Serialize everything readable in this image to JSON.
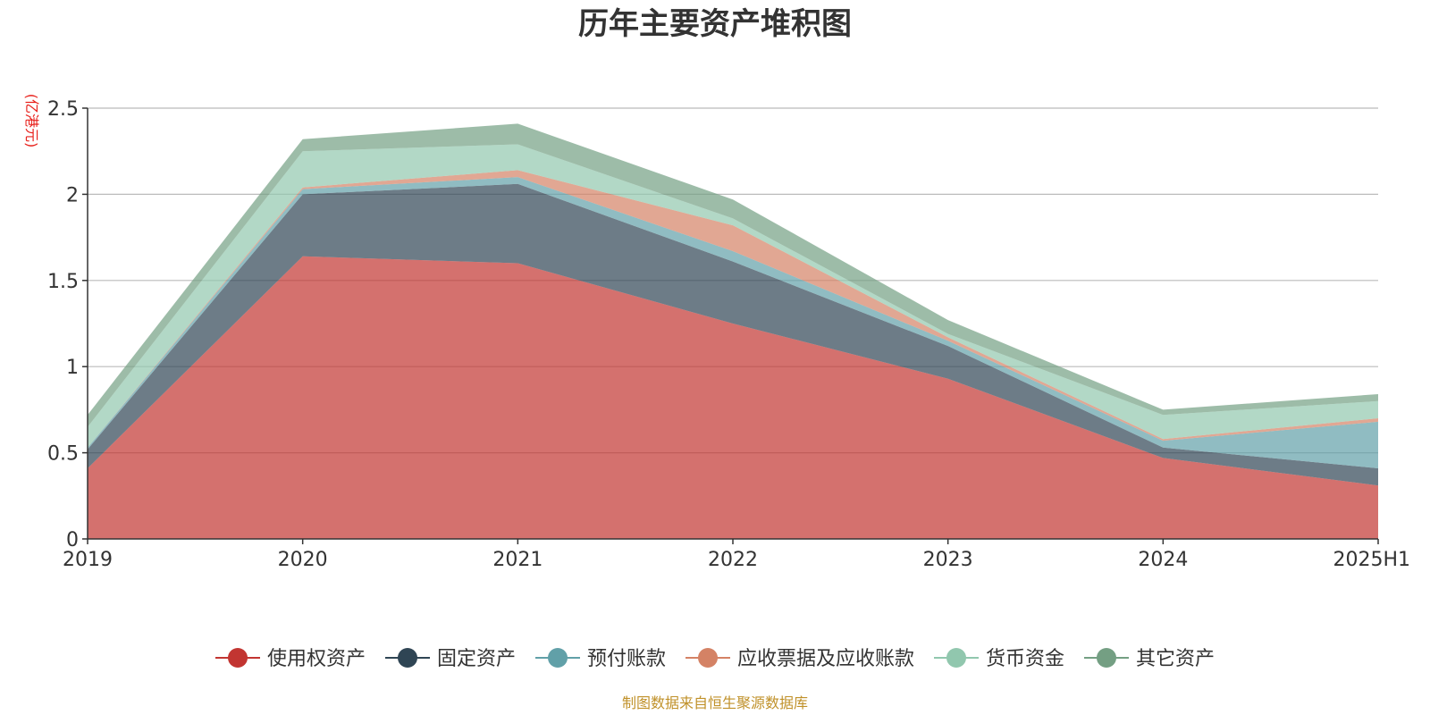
{
  "chart_data": {
    "type": "area",
    "stacked": true,
    "title": "历年主要资产堆积图",
    "ylabel": "(亿港元)",
    "xlabel": "",
    "categories": [
      "2019",
      "2020",
      "2021",
      "2022",
      "2023",
      "2024",
      "2025H1"
    ],
    "ylim": [
      0,
      2.5
    ],
    "yticks": [
      "0",
      "0.5",
      "1",
      "1.5",
      "2",
      "2.5"
    ],
    "grid": true,
    "legend_position": "bottom",
    "series": [
      {
        "name": "使用权资产",
        "color": "#c23531",
        "values": [
          0.41,
          1.64,
          1.6,
          1.25,
          0.93,
          0.47,
          0.31
        ]
      },
      {
        "name": "固定资产",
        "color": "#2f4554",
        "values": [
          0.11,
          0.36,
          0.46,
          0.36,
          0.19,
          0.06,
          0.1
        ]
      },
      {
        "name": "预付账款",
        "color": "#61a0a8",
        "values": [
          0.01,
          0.03,
          0.04,
          0.06,
          0.03,
          0.04,
          0.27
        ]
      },
      {
        "name": "应收票据及应收账款",
        "color": "#d48265",
        "values": [
          0.0,
          0.01,
          0.04,
          0.15,
          0.02,
          0.01,
          0.02
        ]
      },
      {
        "name": "货币资金",
        "color": "#91c7ae",
        "values": [
          0.12,
          0.21,
          0.15,
          0.04,
          0.02,
          0.14,
          0.1
        ]
      },
      {
        "name": "其它资产",
        "color": "#749f83",
        "values": [
          0.07,
          0.07,
          0.12,
          0.11,
          0.08,
          0.03,
          0.04
        ]
      }
    ]
  },
  "footer": {
    "source": "制图数据来自恒生聚源数据库"
  }
}
